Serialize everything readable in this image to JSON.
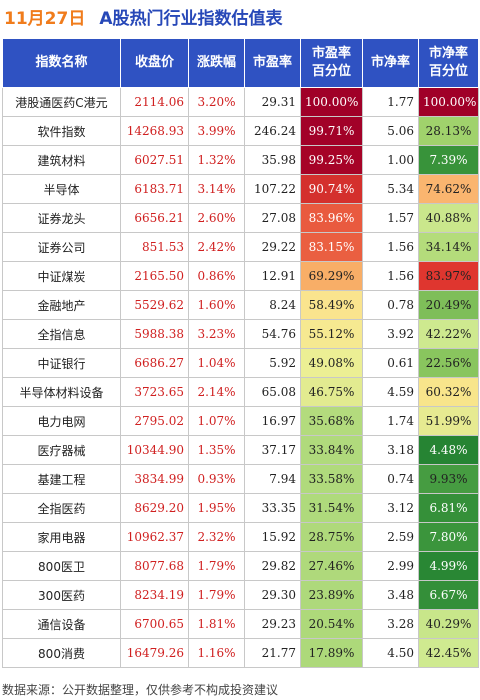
{
  "header": {
    "date": "11月27日",
    "title": "A股热门行业指数估值表"
  },
  "footer": {
    "source": "数据来源：公开数据整理，仅供参考不构成投资建议"
  },
  "colors": {
    "header_bg": "#2f52c2",
    "title": "#2748b8",
    "date": "#f07c1c",
    "positive": "#d02020"
  },
  "chart_data": {
    "type": "table",
    "title": "A股热门行业指数估值表",
    "columns": [
      "指数名称",
      "收盘价",
      "涨跌幅",
      "市盈率",
      "市盈率百分位",
      "市净率",
      "市净率百分位"
    ],
    "rows": [
      {
        "name": "港股通医药C港元",
        "close": "2114.06",
        "change": "3.20%",
        "pe": "29.31",
        "pe_pct": "100.00%",
        "pb": "1.77",
        "pb_pct": "100.00%"
      },
      {
        "name": "软件指数",
        "close": "14268.93",
        "change": "3.99%",
        "pe": "246.24",
        "pe_pct": "99.71%",
        "pb": "5.06",
        "pb_pct": "28.13%"
      },
      {
        "name": "建筑材料",
        "close": "6027.51",
        "change": "1.32%",
        "pe": "35.98",
        "pe_pct": "99.25%",
        "pb": "1.00",
        "pb_pct": "7.39%"
      },
      {
        "name": "半导体",
        "close": "6183.71",
        "change": "3.14%",
        "pe": "107.22",
        "pe_pct": "90.74%",
        "pb": "5.34",
        "pb_pct": "74.62%"
      },
      {
        "name": "证券龙头",
        "close": "6656.21",
        "change": "2.60%",
        "pe": "27.08",
        "pe_pct": "83.96%",
        "pb": "1.57",
        "pb_pct": "40.88%"
      },
      {
        "name": "证券公司",
        "close": "851.53",
        "change": "2.42%",
        "pe": "29.22",
        "pe_pct": "83.15%",
        "pb": "1.56",
        "pb_pct": "34.14%"
      },
      {
        "name": "中证煤炭",
        "close": "2165.50",
        "change": "0.86%",
        "pe": "12.91",
        "pe_pct": "69.29%",
        "pb": "1.56",
        "pb_pct": "83.97%"
      },
      {
        "name": "金融地产",
        "close": "5529.62",
        "change": "1.60%",
        "pe": "8.24",
        "pe_pct": "58.49%",
        "pb": "0.78",
        "pb_pct": "20.49%"
      },
      {
        "name": "全指信息",
        "close": "5988.38",
        "change": "3.23%",
        "pe": "54.76",
        "pe_pct": "55.12%",
        "pb": "3.92",
        "pb_pct": "42.22%"
      },
      {
        "name": "中证银行",
        "close": "6686.27",
        "change": "1.04%",
        "pe": "5.92",
        "pe_pct": "49.08%",
        "pb": "0.61",
        "pb_pct": "22.56%"
      },
      {
        "name": "半导体材料设备",
        "close": "3723.65",
        "change": "2.14%",
        "pe": "65.08",
        "pe_pct": "46.75%",
        "pb": "4.59",
        "pb_pct": "60.32%"
      },
      {
        "name": "电力电网",
        "close": "2795.02",
        "change": "1.07%",
        "pe": "16.97",
        "pe_pct": "35.68%",
        "pb": "1.74",
        "pb_pct": "51.99%"
      },
      {
        "name": "医疗器械",
        "close": "10344.90",
        "change": "1.35%",
        "pe": "37.17",
        "pe_pct": "33.84%",
        "pb": "3.18",
        "pb_pct": "4.48%"
      },
      {
        "name": "基建工程",
        "close": "3834.99",
        "change": "0.93%",
        "pe": "7.94",
        "pe_pct": "33.58%",
        "pb": "0.74",
        "pb_pct": "9.93%"
      },
      {
        "name": "全指医药",
        "close": "8629.20",
        "change": "1.95%",
        "pe": "33.35",
        "pe_pct": "31.54%",
        "pb": "3.12",
        "pb_pct": "6.81%"
      },
      {
        "name": "家用电器",
        "close": "10962.37",
        "change": "2.32%",
        "pe": "15.92",
        "pe_pct": "28.75%",
        "pb": "2.59",
        "pb_pct": "7.80%"
      },
      {
        "name": "800医卫",
        "close": "8077.68",
        "change": "1.79%",
        "pe": "29.82",
        "pe_pct": "27.46%",
        "pb": "2.99",
        "pb_pct": "4.99%"
      },
      {
        "name": "300医药",
        "close": "8234.19",
        "change": "1.79%",
        "pe": "29.30",
        "pe_pct": "23.89%",
        "pb": "3.48",
        "pb_pct": "6.67%"
      },
      {
        "name": "通信设备",
        "close": "6700.65",
        "change": "1.81%",
        "pe": "29.23",
        "pe_pct": "20.54%",
        "pb": "3.28",
        "pb_pct": "40.29%"
      },
      {
        "name": "800消费",
        "close": "16479.26",
        "change": "1.16%",
        "pe": "21.77",
        "pe_pct": "17.89%",
        "pb": "4.50",
        "pb_pct": "42.45%"
      }
    ]
  }
}
